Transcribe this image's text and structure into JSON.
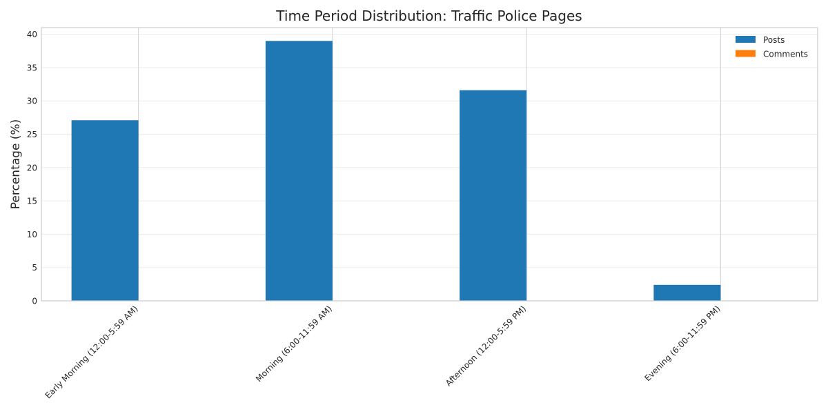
{
  "chart_data": {
    "type": "bar",
    "title": "Time Period Distribution: Traffic Police Pages",
    "xlabel": "",
    "ylabel": "Percentage (%)",
    "ylim": [
      0,
      41
    ],
    "yticks": [
      0,
      5,
      10,
      15,
      20,
      25,
      30,
      35,
      40
    ],
    "categories": [
      "Early Morning (12:00-5:59 AM)",
      "Morning (6:00-11:59 AM)",
      "Afternoon (12:00-5:59 PM)",
      "Evening (6:00-11:59 PM)"
    ],
    "series": [
      {
        "name": "Posts",
        "color": "#1f77b4",
        "values": [
          27.1,
          39.0,
          31.6,
          2.4
        ]
      },
      {
        "name": "Comments",
        "color": "#ff7f0e",
        "values": [
          0,
          0,
          0,
          0
        ]
      }
    ],
    "grid": true,
    "legend": "top-right"
  }
}
